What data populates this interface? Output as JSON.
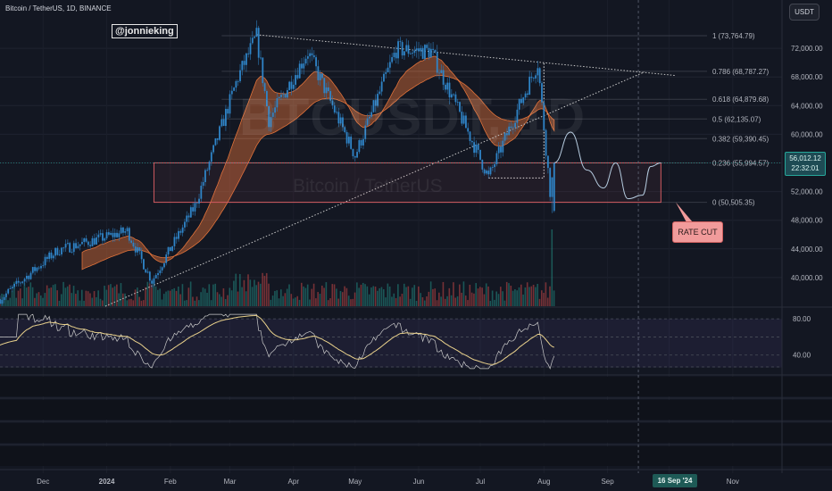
{
  "header": {
    "symbol_line": "Bitcoin / TetherUS, 1D, BINANCE",
    "handle": "@jonnieking",
    "currency_button": "USDT",
    "watermark_ticker": "BTCUSDT, 1D",
    "watermark_name": "Bitcoin / TetherUS"
  },
  "annotation": {
    "label": "RATE CUT"
  },
  "price_tag": {
    "price": "56,012.12",
    "countdown": "22:32:01"
  },
  "date_tag": {
    "label": "16 Sep '24"
  },
  "colors": {
    "background": "#131722",
    "up": "#26a69a",
    "down": "#ef5350",
    "fib_line": "#363a45",
    "box": "#d05a60",
    "ribbon": "#e0723a",
    "forecast": "#b6cce0",
    "rsi_line": "#c9c9c9",
    "rsi_ma": "#ead28c"
  },
  "chart_data": {
    "type": "candlestick",
    "title": "Bitcoin / TetherUS, 1D, BINANCE",
    "y_price_range": [
      36000,
      76500
    ],
    "y_ticks": [
      "72,000.00",
      "68,000.00",
      "64,000.00",
      "60,000.00",
      "56,000.00",
      "52,000.00",
      "48,000.00",
      "44,000.00",
      "40,000.00"
    ],
    "y_tick_values": [
      72000,
      68000,
      64000,
      60000,
      56000,
      52000,
      48000,
      44000,
      40000
    ],
    "x_labels": [
      "Dec",
      "2024",
      "Feb",
      "Mar",
      "Apr",
      "May",
      "Jun",
      "Jul",
      "Aug",
      "Sep",
      "Oct",
      "Nov"
    ],
    "x_label_dates": [
      "2023-12-01",
      "2024-01-01",
      "2024-02-01",
      "2024-03-01",
      "2024-04-01",
      "2024-05-01",
      "2024-06-01",
      "2024-07-01",
      "2024-08-01",
      "2024-09-01",
      "2024-10-01",
      "2024-11-01"
    ],
    "x_date_range": [
      "2023-11-10",
      "2024-11-25"
    ],
    "fib_levels": [
      {
        "label": "1 (73,764.79)",
        "value": 73764.79
      },
      {
        "label": "0.786 (68,787.27)",
        "value": 68787.27
      },
      {
        "label": "0.618 (64,879.68)",
        "value": 64879.68
      },
      {
        "label": "0.5 (62,135.07)",
        "value": 62135.07
      },
      {
        "label": "0.382 (59,390.45)",
        "value": 59390.45
      },
      {
        "label": "0.236 (55,994.57)",
        "value": 55994.57
      },
      {
        "label": "0 (50,505.35)",
        "value": 50505.35
      }
    ],
    "key_price_points": [
      {
        "date": "2023-11-10",
        "price": 37000
      },
      {
        "date": "2023-12-08",
        "price": 43800
      },
      {
        "date": "2024-01-11",
        "price": 46500
      },
      {
        "date": "2024-01-23",
        "price": 39500
      },
      {
        "date": "2024-02-13",
        "price": 50000
      },
      {
        "date": "2024-03-05",
        "price": 68000
      },
      {
        "date": "2024-03-14",
        "price": 73700
      },
      {
        "date": "2024-03-20",
        "price": 62000
      },
      {
        "date": "2024-04-08",
        "price": 71500
      },
      {
        "date": "2024-05-01",
        "price": 57000
      },
      {
        "date": "2024-05-21",
        "price": 71800
      },
      {
        "date": "2024-06-07",
        "price": 71600
      },
      {
        "date": "2024-07-05",
        "price": 54000
      },
      {
        "date": "2024-07-29",
        "price": 70000
      },
      {
        "date": "2024-08-05",
        "price": 49000
      },
      {
        "date": "2024-08-06",
        "price": 56012.12
      }
    ],
    "range_box": {
      "top": 56012.12,
      "bottom": 50505.35,
      "from": "2024-01-24",
      "to": "2024-09-27"
    },
    "forecast_path": [
      {
        "date": "2024-08-06",
        "price": 56012
      },
      {
        "date": "2024-08-14",
        "price": 60300
      },
      {
        "date": "2024-08-22",
        "price": 55000
      },
      {
        "date": "2024-08-30",
        "price": 52500
      },
      {
        "date": "2024-09-05",
        "price": 56000
      },
      {
        "date": "2024-09-11",
        "price": 51000
      },
      {
        "date": "2024-09-18",
        "price": 51500
      },
      {
        "date": "2024-09-22",
        "price": 55500
      },
      {
        "date": "2024-09-27",
        "price": 56000
      }
    ],
    "forecast_marker_date": "2024-09-16",
    "rsi": {
      "y_ticks": [
        "80.00",
        "40.00"
      ],
      "y_tick_values": [
        80,
        40
      ],
      "range": [
        20,
        90
      ]
    }
  }
}
